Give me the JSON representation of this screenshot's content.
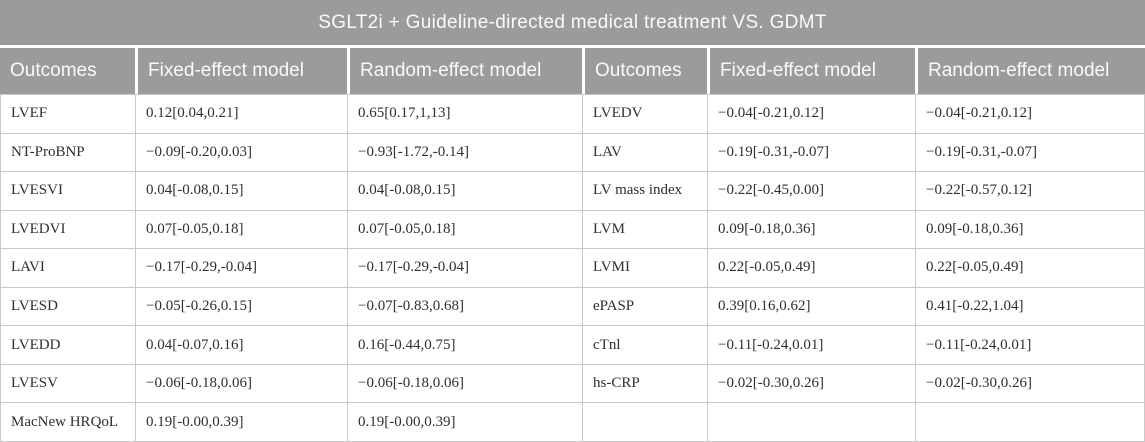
{
  "table": {
    "title": "SGLT2i + Guideline-directed medical treatment VS. GDMT",
    "columns": [
      "Outcomes",
      "Fixed-effect model",
      "Random-effect model",
      "Outcomes",
      "Fixed-effect model",
      "Random-effect model"
    ],
    "rows": [
      [
        "LVEF",
        "0.12[0.04,0.21]",
        "0.65[0.17,1,13]",
        "LVEDV",
        "−0.04[-0.21,0.12]",
        "−0.04[-0.21,0.12]"
      ],
      [
        "NT-ProBNP",
        "−0.09[-0.20,0.03]",
        "−0.93[-1.72,-0.14]",
        "LAV",
        "−0.19[-0.31,-0.07]",
        "−0.19[-0.31,-0.07]"
      ],
      [
        "LVESVI",
        "0.04[-0.08,0.15]",
        "0.04[-0.08,0.15]",
        "LV mass index",
        "−0.22[-0.45,0.00]",
        "−0.22[-0.57,0.12]"
      ],
      [
        "LVEDVI",
        "0.07[-0.05,0.18]",
        "0.07[-0.05,0.18]",
        "LVM",
        "0.09[-0.18,0.36]",
        "0.09[-0.18,0.36]"
      ],
      [
        "LAVI",
        "−0.17[-0.29,-0.04]",
        "−0.17[-0.29,-0.04]",
        "LVMI",
        "0.22[-0.05,0.49]",
        "0.22[-0.05,0.49]"
      ],
      [
        "LVESD",
        "−0.05[-0.26,0.15]",
        "−0.07[-0.83,0.68]",
        "ePASP",
        "0.39[0.16,0.62]",
        "0.41[-0.22,1.04]"
      ],
      [
        "LVEDD",
        "0.04[-0.07,0.16]",
        "0.16[-0.44,0.75]",
        "cTnl",
        "−0.11[-0.24,0.01]",
        "−0.11[-0.24,0.01]"
      ],
      [
        "LVESV",
        "−0.06[-0.18,0.06]",
        "−0.06[-0.18,0.06]",
        "hs-CRP",
        "−0.02[-0.30,0.26]",
        "−0.02[-0.30,0.26]"
      ],
      [
        "MacNew HRQoL",
        "0.19[-0.00,0.39]",
        "0.19[-0.00,0.39]",
        "",
        "",
        ""
      ]
    ],
    "colors": {
      "header_bg": "#9b9b9b",
      "header_text": "#fafafa",
      "body_bg": "#ffffff",
      "body_text": "#2f2f2f",
      "border": "#c9c9c9"
    }
  }
}
